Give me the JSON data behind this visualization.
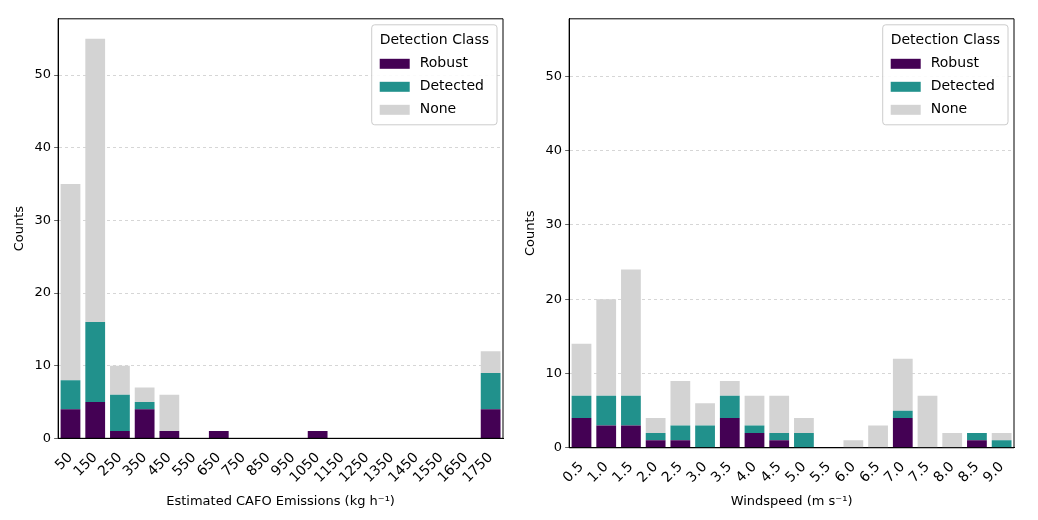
{
  "chart_data": [
    {
      "type": "bar",
      "stacked": true,
      "xlabel": "Estimated CAFO Emissions (kg h⁻¹)",
      "ylabel": "Counts",
      "legend_title": "Detection Class",
      "legend": "top right",
      "grid": "y",
      "categories": [
        "50",
        "150",
        "250",
        "350",
        "450",
        "550",
        "650",
        "750",
        "850",
        "950",
        "1050",
        "1150",
        "1250",
        "1350",
        "1450",
        "1550",
        "1650",
        "1750"
      ],
      "ylim": [
        0,
        57.75
      ],
      "yticks": [
        0,
        10,
        20,
        30,
        40,
        50
      ],
      "series": [
        {
          "name": "Robust",
          "color": "#440154",
          "values": [
            4,
            5,
            1,
            4,
            1,
            0,
            1,
            0,
            0,
            0,
            1,
            0,
            0,
            0,
            0,
            0,
            0,
            4
          ]
        },
        {
          "name": "Detected",
          "color": "#21918c",
          "values": [
            4,
            11,
            5,
            1,
            0,
            0,
            0,
            0,
            0,
            0,
            0,
            0,
            0,
            0,
            0,
            0,
            0,
            5
          ]
        },
        {
          "name": "None",
          "color": "#d3d3d3",
          "values": [
            27,
            39,
            4,
            2,
            5,
            0,
            0,
            0,
            0,
            0,
            0,
            0,
            0,
            0,
            0,
            0,
            0,
            3
          ]
        }
      ]
    },
    {
      "type": "bar",
      "stacked": true,
      "xlabel": "Windspeed (m s⁻¹)",
      "ylabel": "Counts",
      "legend_title": "Detection Class",
      "legend": "top right",
      "grid": "y",
      "categories": [
        "0.5",
        "1.0",
        "1.5",
        "2.0",
        "2.5",
        "3.0",
        "3.5",
        "4.0",
        "4.5",
        "5.0",
        "5.5",
        "6.0",
        "6.5",
        "7.0",
        "7.5",
        "8.0",
        "8.5",
        "9.0"
      ],
      "ylim": [
        0,
        57.75
      ],
      "yticks": [
        0,
        10,
        20,
        30,
        40,
        50
      ],
      "series": [
        {
          "name": "Robust",
          "color": "#440154",
          "values": [
            4,
            3,
            3,
            1,
            1,
            0,
            4,
            2,
            1,
            0,
            0,
            0,
            0,
            4,
            0,
            0,
            1,
            0
          ]
        },
        {
          "name": "Detected",
          "color": "#21918c",
          "values": [
            3,
            4,
            4,
            1,
            2,
            3,
            3,
            1,
            1,
            2,
            0,
            0,
            0,
            1,
            0,
            0,
            1,
            1
          ]
        },
        {
          "name": "None",
          "color": "#d3d3d3",
          "values": [
            7,
            13,
            17,
            2,
            6,
            3,
            2,
            4,
            5,
            2,
            0,
            1,
            3,
            7,
            7,
            2,
            0,
            1
          ]
        }
      ]
    }
  ]
}
